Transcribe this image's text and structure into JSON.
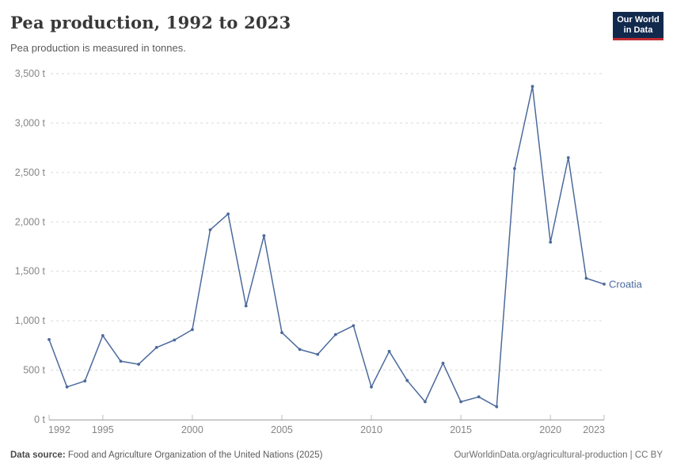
{
  "header": {
    "title": "Pea production, 1992 to 2023",
    "subtitle": "Pea production is measured in tonnes.",
    "logo_line1": "Our World",
    "logo_line2": "in Data"
  },
  "chart_data": {
    "type": "line",
    "title": "Pea production, 1992 to 2023",
    "ylabel": "",
    "xlabel": "",
    "unit": "t",
    "xlim": [
      1992,
      2023
    ],
    "ylim": [
      0,
      3500
    ],
    "grid": "horizontal-dashed",
    "legend_position": "end-of-line-label",
    "x": [
      1992,
      1993,
      1994,
      1995,
      1996,
      1997,
      1998,
      1999,
      2000,
      2001,
      2002,
      2003,
      2004,
      2005,
      2006,
      2007,
      2008,
      2009,
      2010,
      2011,
      2012,
      2013,
      2014,
      2015,
      2016,
      2017,
      2018,
      2019,
      2020,
      2021,
      2022,
      2023
    ],
    "series": [
      {
        "name": "Croatia",
        "color": "#4C6A9C",
        "values": [
          810,
          330,
          390,
          850,
          590,
          560,
          730,
          805,
          910,
          1920,
          2080,
          1150,
          1860,
          880,
          710,
          660,
          860,
          950,
          330,
          690,
          395,
          180,
          570,
          180,
          230,
          130,
          2540,
          3370,
          1795,
          2650,
          1430,
          1370
        ]
      }
    ],
    "y_ticks": [
      {
        "value": 0,
        "label": "0 t"
      },
      {
        "value": 500,
        "label": "500 t"
      },
      {
        "value": 1000,
        "label": "1,000 t"
      },
      {
        "value": 1500,
        "label": "1,500 t"
      },
      {
        "value": 2000,
        "label": "2,000 t"
      },
      {
        "value": 2500,
        "label": "2,500 t"
      },
      {
        "value": 3000,
        "label": "3,000 t"
      },
      {
        "value": 3500,
        "label": "3,500 t"
      }
    ],
    "x_ticks": [
      {
        "value": 1992,
        "label": "1992"
      },
      {
        "value": 1995,
        "label": "1995"
      },
      {
        "value": 2000,
        "label": "2000"
      },
      {
        "value": 2005,
        "label": "2005"
      },
      {
        "value": 2010,
        "label": "2010"
      },
      {
        "value": 2015,
        "label": "2015"
      },
      {
        "value": 2020,
        "label": "2020"
      },
      {
        "value": 2023,
        "label": "2023"
      }
    ]
  },
  "footer": {
    "source_label": "Data source:",
    "source_text": "Food and Agriculture Organization of the United Nations (2025)",
    "note": "OurWorldinData.org/agricultural-production | CC BY"
  },
  "colors": {
    "line": "#4C6A9C",
    "grid": "#dadada",
    "axis": "#9e9e9e",
    "tick": "#bdbdbd",
    "tick_text": "#868686",
    "logo_bg": "#12294e",
    "logo_stripe": "#bf2c30",
    "title_text": "#383838",
    "subtitle_text": "#5b5b5b"
  }
}
